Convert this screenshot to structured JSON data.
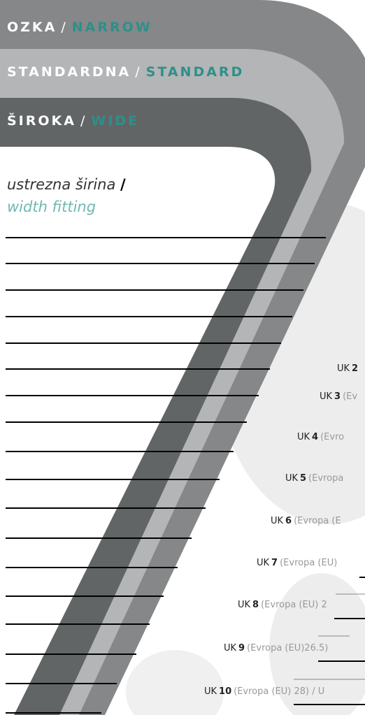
{
  "header_bands": [
    {
      "sl": "OZKA",
      "sep": "/",
      "en": "NARROW"
    },
    {
      "sl": "STANDARDNA",
      "sep": "/",
      "en": "STANDARD"
    },
    {
      "sl": "ŠIROKA",
      "sep": "/",
      "en": "WIDE"
    }
  ],
  "fitting": {
    "sl": "ustrezna širina",
    "sep": "/",
    "en": "width fitting"
  },
  "sizes": [
    {
      "prefix": "UK",
      "number": "2"
    },
    {
      "prefix": "UK",
      "number": "3",
      "detail": "(Ev"
    },
    {
      "prefix": "UK",
      "number": "4",
      "detail": "(Evro"
    },
    {
      "prefix": "UK",
      "number": "5",
      "detail": "(Evropa"
    },
    {
      "prefix": "UK",
      "number": "6",
      "detail": "(Evropa (E"
    },
    {
      "prefix": "UK",
      "number": "7",
      "detail": "(Evropa (EU)"
    },
    {
      "prefix": "UK",
      "number": "8",
      "detail": "(Evropa (EU) 2"
    },
    {
      "prefix": "UK",
      "number": "9",
      "detail": "(Evropa (EU)26.5)"
    },
    {
      "prefix": "UK",
      "number": "10",
      "detail": "(Evropa (EU) 28)  / U"
    }
  ]
}
